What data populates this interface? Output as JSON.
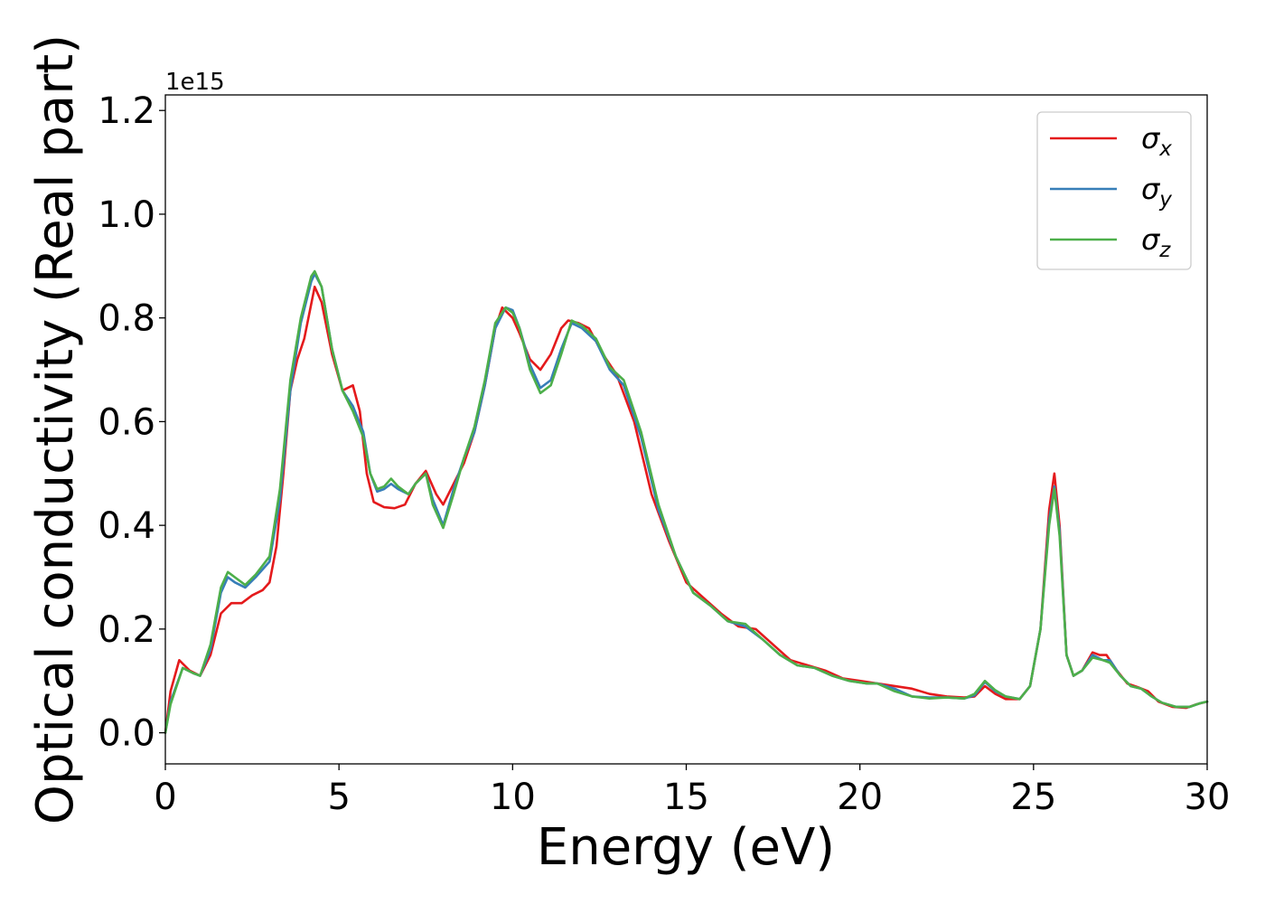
{
  "chart_data": {
    "type": "line",
    "title": "",
    "xlabel": "Energy (eV)",
    "ylabel": "Optical conductivity (Real part)",
    "y_offset_label": "1e15",
    "xlim": [
      0,
      30
    ],
    "ylim": [
      -0.06,
      1.23
    ],
    "xticks": [
      0,
      5,
      10,
      15,
      20,
      25,
      30
    ],
    "xtick_labels": [
      "0",
      "5",
      "10",
      "15",
      "20",
      "25",
      "30"
    ],
    "yticks": [
      0.0,
      0.2,
      0.4,
      0.6,
      0.8,
      1.0,
      1.2
    ],
    "ytick_labels": [
      "0.0",
      "0.2",
      "0.4",
      "0.6",
      "0.8",
      "1.0",
      "1.2"
    ],
    "grid": false,
    "legend_position": "top-right",
    "series": [
      {
        "name": "σx",
        "symbol": "σ",
        "subscript": "x",
        "color": "#e41a1c",
        "points": [
          [
            0,
            0
          ],
          [
            0.15,
            0.08
          ],
          [
            0.4,
            0.14
          ],
          [
            0.7,
            0.12
          ],
          [
            1.0,
            0.11
          ],
          [
            1.3,
            0.15
          ],
          [
            1.6,
            0.23
          ],
          [
            1.9,
            0.25
          ],
          [
            2.2,
            0.25
          ],
          [
            2.5,
            0.265
          ],
          [
            2.8,
            0.275
          ],
          [
            3.0,
            0.29
          ],
          [
            3.2,
            0.36
          ],
          [
            3.4,
            0.5
          ],
          [
            3.6,
            0.66
          ],
          [
            3.8,
            0.72
          ],
          [
            4.0,
            0.76
          ],
          [
            4.3,
            0.86
          ],
          [
            4.5,
            0.83
          ],
          [
            4.8,
            0.73
          ],
          [
            5.1,
            0.66
          ],
          [
            5.4,
            0.67
          ],
          [
            5.6,
            0.62
          ],
          [
            5.8,
            0.5
          ],
          [
            6.0,
            0.445
          ],
          [
            6.3,
            0.435
          ],
          [
            6.6,
            0.433
          ],
          [
            6.9,
            0.44
          ],
          [
            7.2,
            0.48
          ],
          [
            7.5,
            0.505
          ],
          [
            7.8,
            0.46
          ],
          [
            8.0,
            0.44
          ],
          [
            8.3,
            0.48
          ],
          [
            8.6,
            0.52
          ],
          [
            8.9,
            0.58
          ],
          [
            9.2,
            0.67
          ],
          [
            9.5,
            0.78
          ],
          [
            9.7,
            0.82
          ],
          [
            10.0,
            0.8
          ],
          [
            10.2,
            0.77
          ],
          [
            10.5,
            0.72
          ],
          [
            10.8,
            0.7
          ],
          [
            11.1,
            0.73
          ],
          [
            11.4,
            0.78
          ],
          [
            11.6,
            0.795
          ],
          [
            11.9,
            0.79
          ],
          [
            12.2,
            0.78
          ],
          [
            12.6,
            0.73
          ],
          [
            13.0,
            0.69
          ],
          [
            13.5,
            0.6
          ],
          [
            14.0,
            0.46
          ],
          [
            14.5,
            0.37
          ],
          [
            15.0,
            0.29
          ],
          [
            15.5,
            0.26
          ],
          [
            16.0,
            0.23
          ],
          [
            16.5,
            0.205
          ],
          [
            17.0,
            0.2
          ],
          [
            17.5,
            0.17
          ],
          [
            18.0,
            0.14
          ],
          [
            18.5,
            0.13
          ],
          [
            19.0,
            0.12
          ],
          [
            19.5,
            0.105
          ],
          [
            20.0,
            0.1
          ],
          [
            20.5,
            0.095
          ],
          [
            21.0,
            0.09
          ],
          [
            21.5,
            0.085
          ],
          [
            22.0,
            0.075
          ],
          [
            22.5,
            0.07
          ],
          [
            23.0,
            0.068
          ],
          [
            23.3,
            0.07
          ],
          [
            23.6,
            0.09
          ],
          [
            23.9,
            0.075
          ],
          [
            24.2,
            0.065
          ],
          [
            24.6,
            0.065
          ],
          [
            24.9,
            0.09
          ],
          [
            25.2,
            0.2
          ],
          [
            25.45,
            0.43
          ],
          [
            25.6,
            0.5
          ],
          [
            25.75,
            0.4
          ],
          [
            25.95,
            0.15
          ],
          [
            26.15,
            0.11
          ],
          [
            26.4,
            0.12
          ],
          [
            26.7,
            0.155
          ],
          [
            26.9,
            0.15
          ],
          [
            27.1,
            0.15
          ],
          [
            27.4,
            0.12
          ],
          [
            27.7,
            0.095
          ],
          [
            28.0,
            0.088
          ],
          [
            28.3,
            0.08
          ],
          [
            28.6,
            0.06
          ],
          [
            29.0,
            0.05
          ],
          [
            29.4,
            0.048
          ],
          [
            29.7,
            0.055
          ],
          [
            30,
            0.06
          ]
        ]
      },
      {
        "name": "σy",
        "symbol": "σ",
        "subscript": "y",
        "color": "#377eb8",
        "points": [
          [
            0,
            0
          ],
          [
            0.15,
            0.06
          ],
          [
            0.5,
            0.125
          ],
          [
            0.8,
            0.115
          ],
          [
            1.0,
            0.11
          ],
          [
            1.3,
            0.16
          ],
          [
            1.6,
            0.27
          ],
          [
            1.8,
            0.3
          ],
          [
            2.0,
            0.29
          ],
          [
            2.3,
            0.28
          ],
          [
            2.6,
            0.3
          ],
          [
            3.0,
            0.33
          ],
          [
            3.3,
            0.45
          ],
          [
            3.6,
            0.66
          ],
          [
            3.9,
            0.79
          ],
          [
            4.2,
            0.87
          ],
          [
            4.3,
            0.885
          ],
          [
            4.5,
            0.86
          ],
          [
            4.8,
            0.74
          ],
          [
            5.1,
            0.66
          ],
          [
            5.4,
            0.63
          ],
          [
            5.7,
            0.58
          ],
          [
            5.9,
            0.5
          ],
          [
            6.1,
            0.465
          ],
          [
            6.3,
            0.47
          ],
          [
            6.5,
            0.48
          ],
          [
            6.7,
            0.47
          ],
          [
            7.0,
            0.46
          ],
          [
            7.2,
            0.48
          ],
          [
            7.5,
            0.5
          ],
          [
            7.7,
            0.45
          ],
          [
            8.0,
            0.4
          ],
          [
            8.3,
            0.47
          ],
          [
            8.6,
            0.53
          ],
          [
            8.9,
            0.58
          ],
          [
            9.2,
            0.67
          ],
          [
            9.5,
            0.78
          ],
          [
            9.8,
            0.82
          ],
          [
            10.0,
            0.815
          ],
          [
            10.2,
            0.78
          ],
          [
            10.5,
            0.71
          ],
          [
            10.8,
            0.665
          ],
          [
            11.1,
            0.68
          ],
          [
            11.4,
            0.74
          ],
          [
            11.7,
            0.79
          ],
          [
            12.0,
            0.78
          ],
          [
            12.4,
            0.755
          ],
          [
            12.8,
            0.7
          ],
          [
            13.2,
            0.67
          ],
          [
            13.7,
            0.57
          ],
          [
            14.2,
            0.43
          ],
          [
            14.7,
            0.34
          ],
          [
            15.2,
            0.27
          ],
          [
            15.7,
            0.245
          ],
          [
            16.2,
            0.215
          ],
          [
            16.7,
            0.205
          ],
          [
            17.2,
            0.18
          ],
          [
            17.7,
            0.15
          ],
          [
            18.2,
            0.13
          ],
          [
            18.7,
            0.125
          ],
          [
            19.2,
            0.11
          ],
          [
            19.7,
            0.1
          ],
          [
            20.2,
            0.095
          ],
          [
            20.5,
            0.095
          ],
          [
            21.0,
            0.085
          ],
          [
            21.5,
            0.07
          ],
          [
            22.0,
            0.068
          ],
          [
            22.5,
            0.068
          ],
          [
            23.0,
            0.066
          ],
          [
            23.3,
            0.072
          ],
          [
            23.6,
            0.098
          ],
          [
            23.9,
            0.08
          ],
          [
            24.2,
            0.07
          ],
          [
            24.6,
            0.065
          ],
          [
            24.9,
            0.09
          ],
          [
            25.2,
            0.2
          ],
          [
            25.45,
            0.41
          ],
          [
            25.6,
            0.475
          ],
          [
            25.75,
            0.39
          ],
          [
            25.95,
            0.15
          ],
          [
            26.15,
            0.11
          ],
          [
            26.4,
            0.12
          ],
          [
            26.7,
            0.15
          ],
          [
            27.0,
            0.14
          ],
          [
            27.2,
            0.14
          ],
          [
            27.5,
            0.11
          ],
          [
            27.8,
            0.09
          ],
          [
            28.1,
            0.085
          ],
          [
            28.4,
            0.07
          ],
          [
            28.7,
            0.058
          ],
          [
            29.1,
            0.05
          ],
          [
            29.5,
            0.05
          ],
          [
            29.8,
            0.057
          ],
          [
            30,
            0.06
          ]
        ]
      },
      {
        "name": "σz",
        "symbol": "σ",
        "subscript": "z",
        "color": "#4daf4a",
        "points": [
          [
            0,
            0
          ],
          [
            0.15,
            0.055
          ],
          [
            0.5,
            0.125
          ],
          [
            0.8,
            0.115
          ],
          [
            1.0,
            0.11
          ],
          [
            1.3,
            0.17
          ],
          [
            1.6,
            0.28
          ],
          [
            1.8,
            0.31
          ],
          [
            2.0,
            0.3
          ],
          [
            2.3,
            0.285
          ],
          [
            2.6,
            0.305
          ],
          [
            3.0,
            0.34
          ],
          [
            3.3,
            0.47
          ],
          [
            3.6,
            0.68
          ],
          [
            3.9,
            0.8
          ],
          [
            4.2,
            0.88
          ],
          [
            4.3,
            0.89
          ],
          [
            4.5,
            0.86
          ],
          [
            4.8,
            0.74
          ],
          [
            5.1,
            0.66
          ],
          [
            5.4,
            0.62
          ],
          [
            5.7,
            0.57
          ],
          [
            5.9,
            0.5
          ],
          [
            6.1,
            0.47
          ],
          [
            6.3,
            0.475
          ],
          [
            6.5,
            0.49
          ],
          [
            6.7,
            0.475
          ],
          [
            7.0,
            0.46
          ],
          [
            7.2,
            0.48
          ],
          [
            7.5,
            0.5
          ],
          [
            7.7,
            0.44
          ],
          [
            8.0,
            0.395
          ],
          [
            8.3,
            0.46
          ],
          [
            8.6,
            0.53
          ],
          [
            8.9,
            0.59
          ],
          [
            9.2,
            0.68
          ],
          [
            9.5,
            0.79
          ],
          [
            9.8,
            0.82
          ],
          [
            10.0,
            0.81
          ],
          [
            10.2,
            0.78
          ],
          [
            10.5,
            0.7
          ],
          [
            10.8,
            0.655
          ],
          [
            11.1,
            0.67
          ],
          [
            11.4,
            0.73
          ],
          [
            11.7,
            0.795
          ],
          [
            12.0,
            0.785
          ],
          [
            12.4,
            0.76
          ],
          [
            12.8,
            0.705
          ],
          [
            13.2,
            0.68
          ],
          [
            13.7,
            0.58
          ],
          [
            14.2,
            0.44
          ],
          [
            14.7,
            0.34
          ],
          [
            15.2,
            0.27
          ],
          [
            15.7,
            0.245
          ],
          [
            16.2,
            0.215
          ],
          [
            16.7,
            0.21
          ],
          [
            17.2,
            0.18
          ],
          [
            17.7,
            0.15
          ],
          [
            18.2,
            0.13
          ],
          [
            18.7,
            0.125
          ],
          [
            19.2,
            0.11
          ],
          [
            19.7,
            0.1
          ],
          [
            20.2,
            0.095
          ],
          [
            20.5,
            0.095
          ],
          [
            21.0,
            0.08
          ],
          [
            21.5,
            0.07
          ],
          [
            22.0,
            0.066
          ],
          [
            22.5,
            0.068
          ],
          [
            23.0,
            0.066
          ],
          [
            23.3,
            0.075
          ],
          [
            23.6,
            0.1
          ],
          [
            23.9,
            0.082
          ],
          [
            24.2,
            0.07
          ],
          [
            24.6,
            0.065
          ],
          [
            24.9,
            0.09
          ],
          [
            25.2,
            0.2
          ],
          [
            25.45,
            0.4
          ],
          [
            25.6,
            0.47
          ],
          [
            25.75,
            0.38
          ],
          [
            25.95,
            0.15
          ],
          [
            26.15,
            0.11
          ],
          [
            26.4,
            0.12
          ],
          [
            26.7,
            0.145
          ],
          [
            27.0,
            0.14
          ],
          [
            27.2,
            0.135
          ],
          [
            27.5,
            0.11
          ],
          [
            27.8,
            0.09
          ],
          [
            28.1,
            0.085
          ],
          [
            28.4,
            0.07
          ],
          [
            28.7,
            0.058
          ],
          [
            29.1,
            0.05
          ],
          [
            29.5,
            0.05
          ],
          [
            29.8,
            0.057
          ],
          [
            30,
            0.06
          ]
        ]
      }
    ]
  }
}
